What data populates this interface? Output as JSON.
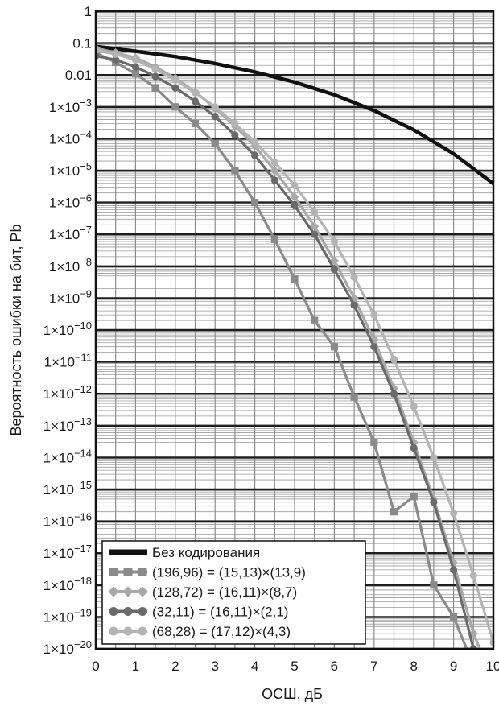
{
  "chart_data": {
    "type": "line",
    "title": "",
    "xlabel": "ОСШ, дБ",
    "ylabel": "Вероятность ошибки на бит, Pb",
    "xlim": [
      0,
      10
    ],
    "ylim_log10": [
      -20,
      0
    ],
    "y_scale": "log",
    "x_ticks": [
      "0",
      "1",
      "2",
      "3",
      "4",
      "5",
      "6",
      "7",
      "8",
      "9",
      "10"
    ],
    "y_ticks": [
      {
        "base": "1",
        "exp": ""
      },
      {
        "base": "0.1",
        "exp": ""
      },
      {
        "base": "0.01",
        "exp": ""
      },
      {
        "base": "1×10",
        "exp": "−3"
      },
      {
        "base": "1×10",
        "exp": "−4"
      },
      {
        "base": "1×10",
        "exp": "−5"
      },
      {
        "base": "1×10",
        "exp": "−6"
      },
      {
        "base": "1×10",
        "exp": "−7"
      },
      {
        "base": "1×10",
        "exp": "−8"
      },
      {
        "base": "1×10",
        "exp": "−9"
      },
      {
        "base": "1×10",
        "exp": "−10"
      },
      {
        "base": "1×10",
        "exp": "−11"
      },
      {
        "base": "1×10",
        "exp": "−12"
      },
      {
        "base": "1×10",
        "exp": "−13"
      },
      {
        "base": "1×10",
        "exp": "−14"
      },
      {
        "base": "1×10",
        "exp": "−15"
      },
      {
        "base": "1×10",
        "exp": "−16"
      },
      {
        "base": "1×10",
        "exp": "−17"
      },
      {
        "base": "1×10",
        "exp": "−18"
      },
      {
        "base": "1×10",
        "exp": "−19"
      },
      {
        "base": "1×10",
        "exp": "−20"
      }
    ],
    "grid": true,
    "legend_position": "bottom-left",
    "series": [
      {
        "name": "Без кодирования",
        "color": "#111111",
        "marker": "none",
        "x": [
          0,
          1,
          2,
          3,
          4,
          5,
          6,
          7,
          8,
          9,
          10
        ],
        "y": [
          0.079,
          0.056,
          0.038,
          0.023,
          0.0125,
          0.006,
          0.0024,
          0.00077,
          0.00019,
          3.4e-05,
          3.9e-06
        ]
      },
      {
        "name": "(196,96) = (15,13)×(13,9)",
        "color": "#8a8a8a",
        "marker": "square",
        "x": [
          0,
          0.5,
          1,
          1.5,
          2,
          2.5,
          3,
          3.5,
          4,
          4.5,
          5,
          5.5,
          6,
          6.5,
          7,
          7.5,
          8,
          8.5,
          9,
          9.5
        ],
        "y": [
          0.05,
          0.025,
          0.011,
          0.004,
          0.001,
          0.0003,
          7e-05,
          1e-05,
          1e-06,
          7e-08,
          4e-09,
          2e-10,
          3e-11,
          8e-13,
          3e-14,
          2e-16,
          6e-16,
          1e-18,
          1e-19,
          3e-21
        ]
      },
      {
        "name": "(128,72) = (16,11)×(8,7)",
        "color": "#a9a9a9",
        "marker": "diamond",
        "x": [
          0,
          0.5,
          1,
          1.5,
          2,
          2.5,
          3,
          3.5,
          4,
          4.5,
          5,
          5.5,
          6,
          6.5,
          7,
          7.5,
          8,
          8.5,
          9,
          9.5,
          10
        ],
        "y": [
          0.07,
          0.05,
          0.035,
          0.018,
          0.008,
          0.003,
          0.0009,
          0.00025,
          6e-05,
          1e-05,
          1.5e-06,
          1.8e-07,
          1.5e-08,
          1e-09,
          5e-11,
          1.5e-12,
          3e-14,
          5e-16,
          5e-18,
          3e-20,
          1e-21
        ]
      },
      {
        "name": "(32,11) = (16,11)×(2,1)",
        "color": "#6a6a6a",
        "marker": "circle",
        "x": [
          0,
          0.5,
          1,
          1.5,
          2,
          2.5,
          3,
          3.5,
          4,
          4.5,
          5,
          5.5,
          6,
          6.5,
          7,
          7.5,
          8,
          8.5,
          9,
          9.5,
          10
        ],
        "y": [
          0.04,
          0.03,
          0.018,
          0.009,
          0.004,
          0.0015,
          0.0005,
          0.00013,
          3e-05,
          5e-06,
          8e-07,
          1e-07,
          8e-09,
          6e-10,
          3e-11,
          1e-12,
          2e-14,
          4e-16,
          3e-18,
          1e-20,
          2e-21
        ]
      },
      {
        "name": "(68,28) = (17,12)×(4,3)",
        "color": "#b4b4b4",
        "marker": "circle",
        "x": [
          0,
          0.5,
          1,
          1.5,
          2,
          2.5,
          3,
          3.5,
          4,
          4.5,
          5,
          5.5,
          6,
          6.5,
          7,
          7.5,
          8,
          8.5,
          9,
          9.5,
          10
        ],
        "y": [
          0.06,
          0.045,
          0.03,
          0.015,
          0.007,
          0.0028,
          0.001,
          0.0003,
          8e-05,
          1.8e-05,
          3.5e-06,
          5e-07,
          6e-08,
          4.5e-09,
          3e-10,
          1.2e-11,
          4e-13,
          1e-14,
          1.8e-16,
          2e-18,
          1.6e-20
        ]
      }
    ]
  }
}
